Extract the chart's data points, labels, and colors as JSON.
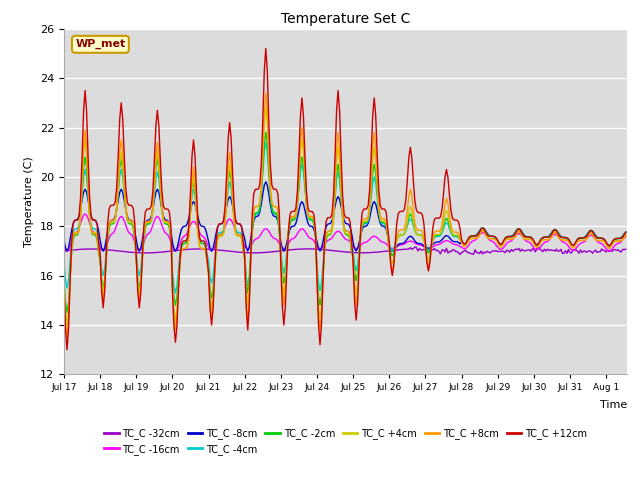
{
  "title": "Temperature Set C",
  "xlabel": "Time",
  "ylabel": "Temperature (C)",
  "ylim": [
    12,
    26
  ],
  "xlim": [
    0,
    374
  ],
  "background_color": "#dcdcdc",
  "plot_bg_color": "#dcdcdc",
  "series_colors": {
    "TC_C -32cm": "#9900cc",
    "TC_C -16cm": "#ff00ff",
    "TC_C -8cm": "#0000cc",
    "TC_C -4cm": "#00cccc",
    "TC_C -2cm": "#00cc00",
    "TC_C +4cm": "#cccc00",
    "TC_C +8cm": "#ff9900",
    "TC_C +12cm": "#cc0000"
  },
  "series_order": [
    "TC_C -32cm",
    "TC_C -16cm",
    "TC_C -8cm",
    "TC_C -4cm",
    "TC_C -2cm",
    "TC_C +4cm",
    "TC_C +8cm",
    "TC_C +12cm"
  ],
  "legend_label": "WP_met",
  "legend_box_color": "#ffffcc",
  "legend_box_edge": "#cc9900",
  "legend_text_color": "#880000",
  "yticks": [
    12,
    14,
    16,
    18,
    20,
    22,
    24,
    26
  ],
  "xtick_labels": [
    "Jul 17",
    "Jul 18",
    "Jul 19",
    "Jul 20",
    "Jul 21",
    "Jul 22",
    "Jul 23",
    "Jul 24",
    "Jul 25",
    "Jul 26",
    "Jul 27",
    "Jul 28",
    "Jul 29",
    "Jul 30",
    "Jul 31",
    "Aug 1"
  ],
  "xtick_positions": [
    0,
    24,
    48,
    72,
    96,
    120,
    144,
    168,
    192,
    216,
    240,
    264,
    288,
    312,
    336,
    360
  ]
}
